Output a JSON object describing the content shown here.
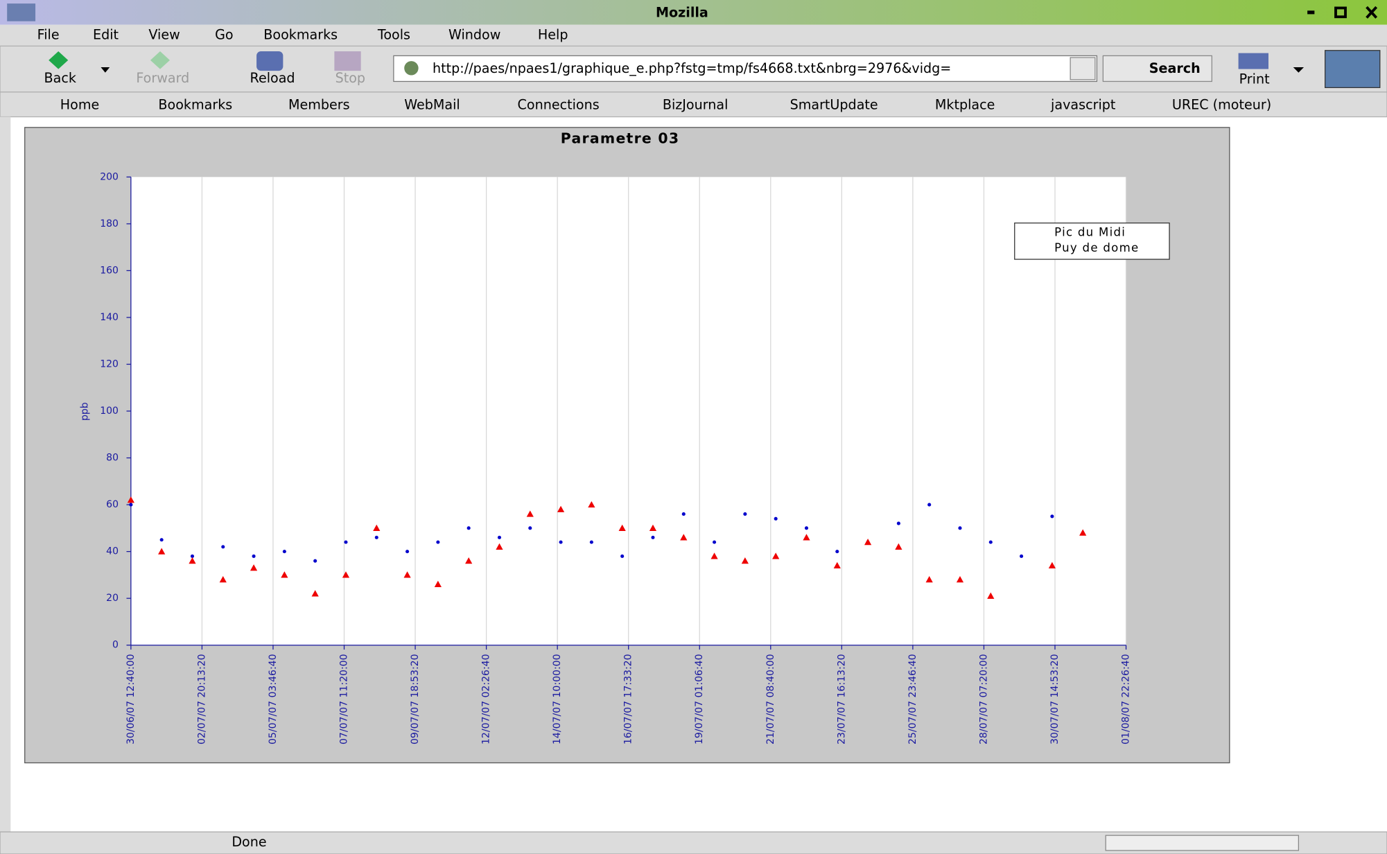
{
  "window": {
    "title": "Mozilla"
  },
  "menu": [
    "File",
    "Edit",
    "View",
    "Go",
    "Bookmarks",
    "Tools",
    "Window",
    "Help"
  ],
  "toolbar": {
    "buttons": [
      "Back",
      "Forward",
      "Reload",
      "Stop"
    ],
    "url": "http://paes/npaes1/graphique_e.php?fstg=tmp/fs4668.txt&nbrg=2976&vidg=",
    "search": "Search",
    "print": "Print"
  },
  "bookmarks": [
    "Home",
    "Bookmarks",
    "Members",
    "WebMail",
    "Connections",
    "BizJournal",
    "SmartUpdate",
    "Mktplace",
    "javascript",
    "UREC (moteur)"
  ],
  "status": "Done",
  "chart_data": {
    "type": "scatter",
    "title": "Parametre 03",
    "y_label": "ppb",
    "x": [
      "2007-06-30T12:40",
      "2007-07-01T12:40",
      "2007-07-02T12:40",
      "2007-07-03T12:40",
      "2007-07-04T12:40",
      "2007-07-05T12:40",
      "2007-07-06T12:40",
      "2007-07-07T12:40",
      "2007-07-08T12:40",
      "2007-07-09T12:40",
      "2007-07-10T12:40",
      "2007-07-11T12:40",
      "2007-07-12T12:40",
      "2007-07-13T12:40",
      "2007-07-14T12:40",
      "2007-07-15T12:40",
      "2007-07-16T12:40",
      "2007-07-17T12:40",
      "2007-07-18T12:40",
      "2007-07-19T12:40",
      "2007-07-20T12:40",
      "2007-07-21T12:40",
      "2007-07-22T12:40",
      "2007-07-23T12:40",
      "2007-07-24T12:40",
      "2007-07-25T12:40",
      "2007-07-26T12:40",
      "2007-07-27T12:40",
      "2007-07-28T12:40",
      "2007-07-29T12:40",
      "2007-07-30T12:40",
      "2007-07-31T12:40"
    ],
    "series": [
      {
        "name": "Pic du Midi",
        "color": "#0000cc",
        "marker": "circle",
        "values": [
          60,
          45,
          38,
          42,
          38,
          40,
          36,
          44,
          46,
          40,
          44,
          50,
          46,
          50,
          44,
          44,
          38,
          46,
          56,
          44,
          56,
          54,
          50,
          40,
          44,
          52,
          60,
          50,
          44,
          38,
          55,
          null
        ]
      },
      {
        "name": "Puy de dome",
        "color": "#ee0000",
        "marker": "triangle",
        "values": [
          62,
          40,
          36,
          28,
          33,
          30,
          22,
          30,
          50,
          30,
          26,
          36,
          42,
          56,
          58,
          60,
          50,
          50,
          46,
          38,
          36,
          38,
          46,
          34,
          44,
          42,
          28,
          28,
          21,
          null,
          34,
          48
        ]
      }
    ],
    "xlim": [
      "2007-06-30T12:40:00",
      "2007-08-01T22:26:40"
    ],
    "xticks": [
      {
        "value": "2007-06-30T12:40:00",
        "label": "30/06/07 12:40:00"
      },
      {
        "value": "2007-07-02T20:13:20",
        "label": "02/07/07 20:13:20"
      },
      {
        "value": "2007-07-05T03:46:40",
        "label": "05/07/07 03:46:40"
      },
      {
        "value": "2007-07-07T11:20:00",
        "label": "07/07/07 11:20:00"
      },
      {
        "value": "2007-07-09T18:53:20",
        "label": "09/07/07 18:53:20"
      },
      {
        "value": "2007-07-12T02:26:40",
        "label": "12/07/07 02:26:40"
      },
      {
        "value": "2007-07-14T10:00:00",
        "label": "14/07/07 10:00:00"
      },
      {
        "value": "2007-07-16T17:33:20",
        "label": "16/07/07 17:33:20"
      },
      {
        "value": "2007-07-19T01:06:40",
        "label": "19/07/07 01:06:40"
      },
      {
        "value": "2007-07-21T08:40:00",
        "label": "21/07/07 08:40:00"
      },
      {
        "value": "2007-07-23T16:13:20",
        "label": "23/07/07 16:13:20"
      },
      {
        "value": "2007-07-25T23:46:40",
        "label": "25/07/07 23:46:40"
      },
      {
        "value": "2007-07-28T07:20:00",
        "label": "28/07/07 07:20:00"
      },
      {
        "value": "2007-07-30T14:53:20",
        "label": "30/07/07 14:53:20"
      },
      {
        "value": "2007-08-01T22:26:40",
        "label": "01/08/07 22:26:40"
      }
    ],
    "ylim": [
      0,
      200
    ],
    "yticks": [
      0,
      20,
      40,
      60,
      80,
      100,
      120,
      140,
      160,
      180,
      200
    ],
    "grid": "x",
    "legend": "upper right"
  }
}
